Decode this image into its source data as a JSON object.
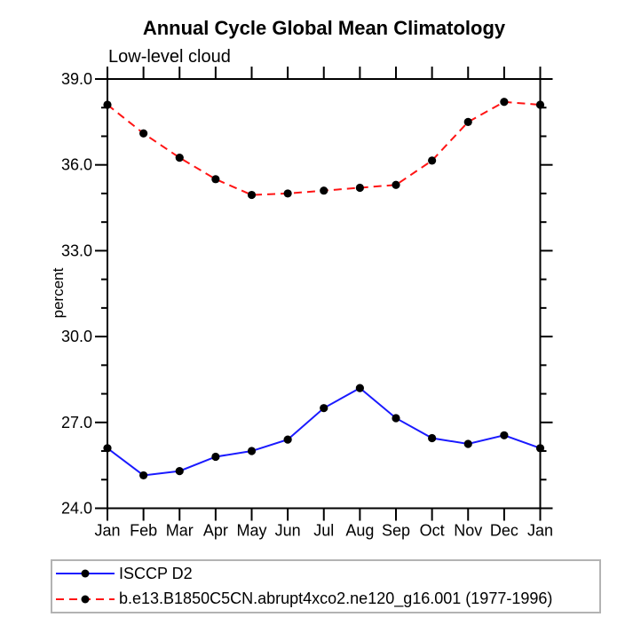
{
  "chart_data": {
    "type": "line",
    "title": "Annual Cycle Global Mean Climatology",
    "subtitle": "Low-level cloud",
    "xlabel": "",
    "ylabel": "percent",
    "categories": [
      "Jan",
      "Feb",
      "Mar",
      "Apr",
      "May",
      "Jun",
      "Jul",
      "Aug",
      "Sep",
      "Oct",
      "Nov",
      "Dec",
      "Jan"
    ],
    "ylim": [
      24.0,
      39.0
    ],
    "y_major_ticks": [
      24.0,
      27.0,
      30.0,
      33.0,
      36.0,
      39.0
    ],
    "y_tick_labels": [
      "24.0",
      "27.0",
      "30.0",
      "33.0",
      "36.0",
      "39.0"
    ],
    "y_minor_step": 1.0,
    "grid": false,
    "legend_position": "bottom",
    "marker": "filled-circle",
    "marker_color": "#000000",
    "series": [
      {
        "name": "ISCCP D2",
        "color": "#1a1aff",
        "line_style": "solid",
        "values": [
          26.1,
          25.15,
          25.3,
          25.8,
          26.0,
          26.4,
          27.5,
          28.2,
          27.15,
          26.45,
          26.25,
          26.55,
          26.1
        ]
      },
      {
        "name": "b.e13.B1850C5CN.abrupt4xco2.ne120_g16.001 (1977-1996)",
        "color": "#ff1414",
        "line_style": "dashed",
        "values": [
          38.1,
          37.1,
          36.25,
          35.5,
          34.95,
          35.0,
          35.1,
          35.2,
          35.3,
          36.15,
          37.5,
          38.2,
          38.1
        ]
      }
    ]
  }
}
